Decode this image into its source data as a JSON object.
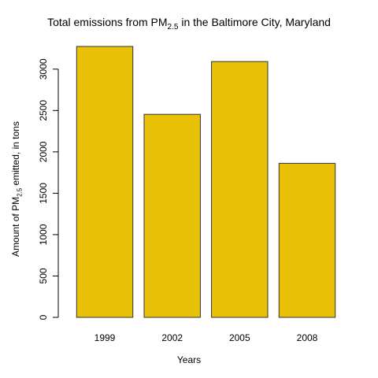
{
  "chart_data": {
    "type": "bar",
    "title": {
      "pre": "Total emissions from PM",
      "sub": "2.5",
      "post": " in the Baltimore City, Maryland"
    },
    "xlabel": "Years",
    "ylabel": {
      "pre": "Amount of PM",
      "sub": "2.5",
      "post": " emitted, in tons"
    },
    "categories": [
      "1999",
      "2002",
      "2005",
      "2008"
    ],
    "values": [
      3274,
      2454,
      3091,
      1862
    ],
    "yticks": [
      0,
      500,
      1000,
      1500,
      2000,
      2500,
      3000
    ],
    "ylim": [
      0,
      3274
    ],
    "bar_color": "#E8C108",
    "bar_border": "#333333",
    "grid": false,
    "legend": "none"
  }
}
